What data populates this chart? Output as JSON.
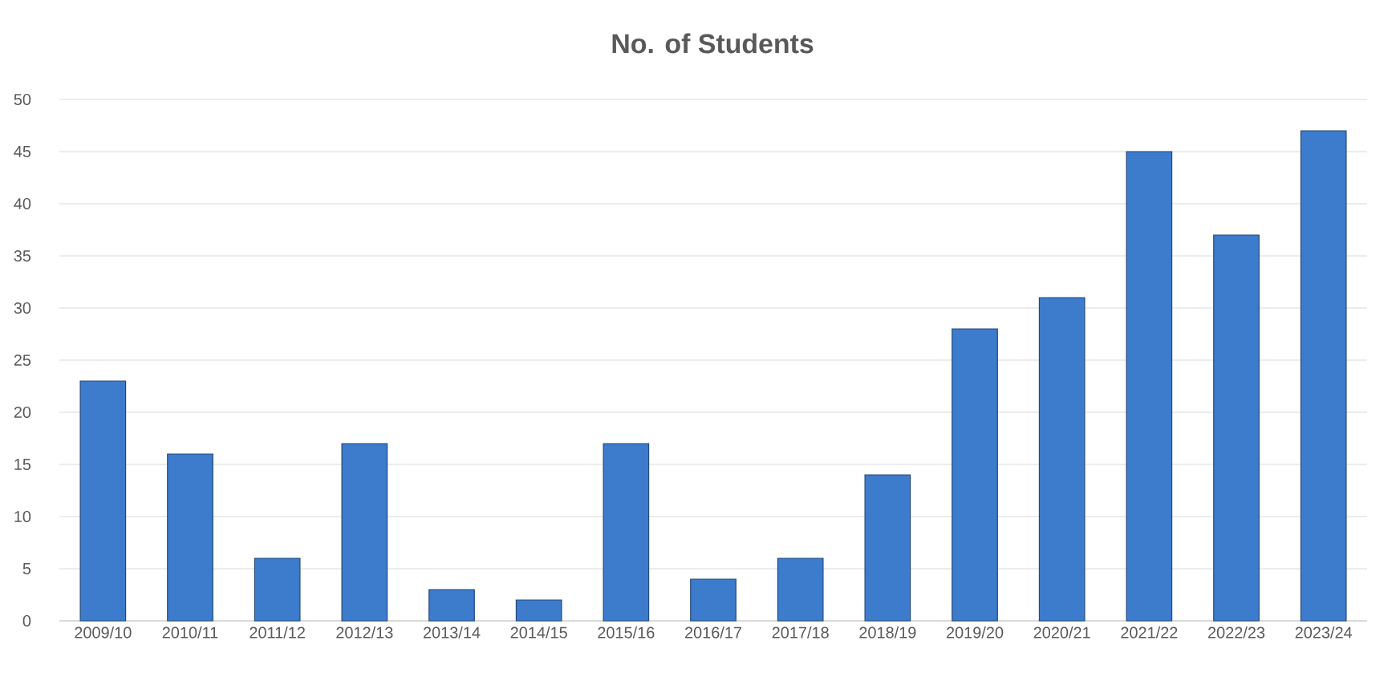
{
  "chart_data": {
    "type": "bar",
    "title": "No. of Students",
    "categories": [
      "2009/10",
      "2010/11",
      "2011/12",
      "2012/13",
      "2013/14",
      "2014/15",
      "2015/16",
      "2016/17",
      "2017/18",
      "2018/19",
      "2019/20",
      "2020/21",
      "2021/22",
      "2022/23",
      "2023/24"
    ],
    "values": [
      23,
      16,
      6,
      17,
      3,
      2,
      17,
      4,
      6,
      14,
      28,
      31,
      45,
      37,
      47
    ],
    "color": "#3d7bcc",
    "ylim": [
      0,
      50
    ],
    "yticks": [
      0,
      5,
      10,
      15,
      20,
      25,
      30,
      35,
      40,
      45,
      50
    ],
    "grid": "y"
  }
}
